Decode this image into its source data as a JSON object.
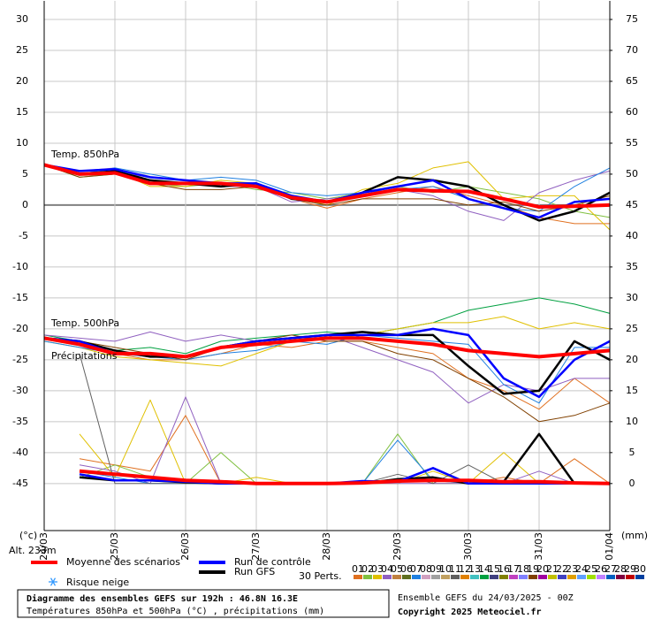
{
  "chart_data": {
    "type": "line",
    "x": [
      0,
      12,
      24,
      36,
      48,
      60,
      72,
      84,
      96,
      108,
      120,
      132,
      144,
      156,
      168,
      180,
      192
    ],
    "xlim": [
      0,
      192
    ],
    "xticks": [
      {
        "value": 0,
        "label": "24/03"
      },
      {
        "value": 24,
        "label": "25/03"
      },
      {
        "value": 48,
        "label": "26/03"
      },
      {
        "value": 72,
        "label": "27/03"
      },
      {
        "value": 96,
        "label": "28/03"
      },
      {
        "value": 120,
        "label": "29/03"
      },
      {
        "value": 144,
        "label": "30/03"
      },
      {
        "value": 168,
        "label": "31/03"
      },
      {
        "value": 192,
        "label": "01/04"
      }
    ],
    "ylim": [
      -52.6,
      33
    ],
    "yticks": [
      -45,
      -40,
      -35,
      -30,
      -25,
      -20,
      -15,
      -10,
      -5,
      0,
      5,
      10,
      15,
      20,
      25,
      30
    ],
    "y2lim": [
      -7.6,
      78
    ],
    "y2ticks": [
      0,
      5,
      10,
      15,
      20,
      25,
      30,
      35,
      40,
      45,
      50,
      55,
      60,
      65,
      70,
      75
    ],
    "ylabel": "(°c)",
    "y2label": "(mm)",
    "altitude": "Alt. 233m",
    "grid": true,
    "legend": [
      {
        "name": "Moyenne des scénarios",
        "color": "#ff0000"
      },
      {
        "name": "Run de contrôle",
        "color": "#0000ff"
      },
      {
        "name": "Run GFS",
        "color": "#000000"
      }
    ],
    "snow_legend": "Risque neige",
    "perturbations_label": "30 Perts.",
    "perturbation_legend": [
      {
        "label": "01",
        "color": "#e07020"
      },
      {
        "label": "02",
        "color": "#80c040"
      },
      {
        "label": "03",
        "color": "#e0c000"
      },
      {
        "label": "04",
        "color": "#9060c0"
      },
      {
        "label": "05",
        "color": "#c08040"
      },
      {
        "label": "06",
        "color": "#607020"
      },
      {
        "label": "07",
        "color": "#2080e0"
      },
      {
        "label": "08",
        "color": "#d0a0c0"
      },
      {
        "label": "09",
        "color": "#a0a0a0"
      },
      {
        "label": "10",
        "color": "#c0a060"
      },
      {
        "label": "11",
        "color": "#606060"
      },
      {
        "label": "12",
        "color": "#e08000"
      },
      {
        "label": "13",
        "color": "#40c0c0"
      },
      {
        "label": "14",
        "color": "#00a040"
      },
      {
        "label": "15",
        "color": "#404080"
      },
      {
        "label": "16",
        "color": "#808000"
      },
      {
        "label": "17",
        "color": "#c040c0"
      },
      {
        "label": "18",
        "color": "#8080ff"
      },
      {
        "label": "19",
        "color": "#804000"
      },
      {
        "label": "20",
        "color": "#a000a0"
      },
      {
        "label": "21",
        "color": "#c0c000"
      },
      {
        "label": "22",
        "color": "#4040c0"
      },
      {
        "label": "23",
        "color": "#e0a000"
      },
      {
        "label": "24",
        "color": "#60a0ff"
      },
      {
        "label": "25",
        "color": "#a0e000"
      },
      {
        "label": "26",
        "color": "#c080ff"
      },
      {
        "label": "27",
        "color": "#0060c0"
      },
      {
        "label": "28",
        "color": "#800040"
      },
      {
        "label": "29",
        "color": "#c00000"
      },
      {
        "label": "30",
        "color": "#0040a0"
      }
    ],
    "groups": [
      {
        "label": "Temp. 850hPa",
        "mean": [
          6.5,
          5,
          5.2,
          3.5,
          3.5,
          3.5,
          3,
          1.2,
          0.5,
          1.5,
          2.5,
          2.3,
          2.2,
          1,
          -0.3,
          -0.2,
          0
        ],
        "control": [
          6.5,
          5.5,
          5.8,
          4.5,
          4,
          3.5,
          3.5,
          1.5,
          0.5,
          2,
          3,
          4,
          1,
          -0.5,
          -2,
          0.5,
          1
        ],
        "gfs": [
          6.5,
          5,
          5.5,
          4,
          3.5,
          3,
          3.5,
          1,
          0.5,
          2,
          4.5,
          4,
          3,
          0,
          -2.5,
          -1,
          2
        ],
        "perturbations": [
          {
            "color": "#e07020",
            "values": [
              6.5,
              5,
              5.5,
              4,
              3.5,
              3,
              3.5,
              1,
              -0.5,
              1,
              2,
              3,
              1.5,
              0,
              -2,
              -3,
              -3
            ]
          },
          {
            "color": "#80c040",
            "values": [
              6.5,
              4.5,
              5,
              3.5,
              3,
              3.5,
              2.5,
              2,
              1,
              2,
              3,
              2,
              3,
              2,
              1,
              -1,
              -2
            ]
          },
          {
            "color": "#e0c000",
            "values": [
              6.5,
              5,
              5.5,
              3,
              3,
              4,
              3.5,
              1.5,
              0,
              2.5,
              3.5,
              6,
              7,
              1,
              1.5,
              1.5,
              -4
            ]
          },
          {
            "color": "#9060c0",
            "values": [
              6.5,
              5.5,
              6,
              4,
              3.5,
              3,
              3,
              0.5,
              1,
              1.5,
              2.5,
              1.5,
              -1,
              -2.5,
              2,
              4,
              5.5
            ]
          },
          {
            "color": "#2080e0",
            "values": [
              6.5,
              5,
              6,
              5,
              4,
              4.5,
              4,
              2,
              1.5,
              2,
              2.5,
              3,
              1,
              -0.5,
              -1,
              3,
              6
            ]
          },
          {
            "color": "#804000",
            "values": [
              6.5,
              4.5,
              5,
              3.5,
              2.5,
              2.5,
              3,
              1,
              0,
              1,
              1,
              1,
              0,
              0.5,
              -1,
              0,
              1.5
            ]
          }
        ]
      },
      {
        "label": "Temp. 500hPa",
        "mean": [
          -21.5,
          -22.5,
          -24,
          -24,
          -24.5,
          -23,
          -22.5,
          -22,
          -21.5,
          -21.5,
          -22,
          -22.5,
          -23.5,
          -24,
          -24.5,
          -24,
          -23.5
        ],
        "control": [
          -21.5,
          -22,
          -24,
          -24,
          -24.5,
          -23,
          -22,
          -21.5,
          -21,
          -21,
          -21,
          -20,
          -21,
          -28,
          -31,
          -25,
          -22
        ],
        "gfs": [
          -21.5,
          -22,
          -23.5,
          -24.5,
          -24.5,
          -23,
          -22,
          -21.5,
          -21,
          -20.5,
          -21,
          -21,
          -26,
          -30.5,
          -30,
          -22,
          -25
        ],
        "perturbations": [
          {
            "color": "#e07020",
            "values": [
              -21.5,
              -22.5,
              -24,
              -25,
              -25,
              -24,
              -22.5,
              -23,
              -22,
              -22,
              -23,
              -24,
              -28,
              -30,
              -33,
              -28,
              -32
            ]
          },
          {
            "color": "#00a040",
            "values": [
              -21,
              -22,
              -23.5,
              -23,
              -24,
              -22,
              -21.5,
              -21,
              -20.5,
              -21,
              -20,
              -19,
              -17,
              -16,
              -15,
              -16,
              -17.5
            ]
          },
          {
            "color": "#e0c000",
            "values": [
              -22,
              -23,
              -24.5,
              -25,
              -25.5,
              -26,
              -24,
              -22,
              -21.5,
              -21,
              -20,
              -19,
              -19,
              -18,
              -20,
              -19,
              -20
            ]
          },
          {
            "color": "#9060c0",
            "values": [
              -21,
              -21.5,
              -22,
              -20.5,
              -22,
              -21,
              -22,
              -21.5,
              -21,
              -23,
              -25,
              -27,
              -32,
              -29,
              -30,
              -28,
              -28
            ]
          },
          {
            "color": "#2080e0",
            "values": [
              -22,
              -23,
              -24,
              -24.5,
              -25,
              -24,
              -23.5,
              -22,
              -22.5,
              -21,
              -21.5,
              -22,
              -22.5,
              -29,
              -32,
              -23,
              -23
            ]
          },
          {
            "color": "#804000",
            "values": [
              -21.5,
              -22,
              -23,
              -24,
              -25,
              -23,
              -22,
              -21,
              -22,
              -22,
              -24,
              -25,
              -28,
              -31,
              -35,
              -34,
              -32
            ]
          }
        ]
      },
      {
        "label": "Précipitations",
        "axis": "y2",
        "mean": [
          null,
          2,
          1.5,
          1,
          0.5,
          0.3,
          0,
          0,
          0,
          0.1,
          0.4,
          0.5,
          0.5,
          0.3,
          0.3,
          0.1,
          0
        ],
        "control": [
          null,
          1.5,
          0.5,
          0.5,
          0.3,
          0,
          0,
          0,
          0,
          0.4,
          0.3,
          2.5,
          0,
          0,
          0,
          0,
          0
        ],
        "gfs": [
          null,
          1,
          0.5,
          0.5,
          0.2,
          0,
          0,
          0,
          0,
          0,
          0.7,
          1,
          0,
          0.3,
          8,
          0,
          0
        ],
        "perturbations": [
          {
            "color": "#e07020",
            "values": [
              null,
              4,
              3,
              2,
              11,
              0,
              0,
              0,
              0,
              0,
              0.5,
              0.5,
              0,
              1,
              0,
              4,
              0
            ]
          },
          {
            "color": "#80c040",
            "values": [
              null,
              1,
              3,
              1,
              0,
              5,
              0,
              0,
              0,
              0,
              8,
              0,
              0,
              0,
              0,
              0,
              0
            ]
          },
          {
            "color": "#e0c000",
            "values": [
              null,
              8,
              1,
              13.5,
              0,
              0,
              1,
              0,
              0,
              0,
              0,
              2,
              0,
              5,
              0,
              0,
              0
            ]
          },
          {
            "color": "#9060c0",
            "values": [
              null,
              3,
              2,
              0,
              14,
              0,
              0,
              0,
              0,
              0,
              0,
              0,
              0,
              0,
              2,
              0,
              0
            ]
          },
          {
            "color": "#2080e0",
            "values": [
              null,
              2,
              1,
              0,
              0,
              0,
              0,
              0,
              0,
              0,
              7,
              0.5,
              0,
              0,
              0,
              0,
              0
            ]
          },
          {
            "color": "#606060",
            "values": [
              null,
              21,
              0,
              0,
              0,
              0,
              0,
              0,
              0,
              0,
              1.5,
              0,
              3,
              0,
              0,
              0,
              0
            ]
          }
        ]
      }
    ],
    "footer": {
      "title": "Diagramme des ensembles GEFS sur 192h : 46.8N 16.3E",
      "subtitle": "Températures 850hPa et 500hPa (°C) , précipitations (mm)",
      "run": "Ensemble GEFS du 24/03/2025 - 00Z",
      "copyright": "Copyright 2025 Meteociel.fr"
    }
  }
}
